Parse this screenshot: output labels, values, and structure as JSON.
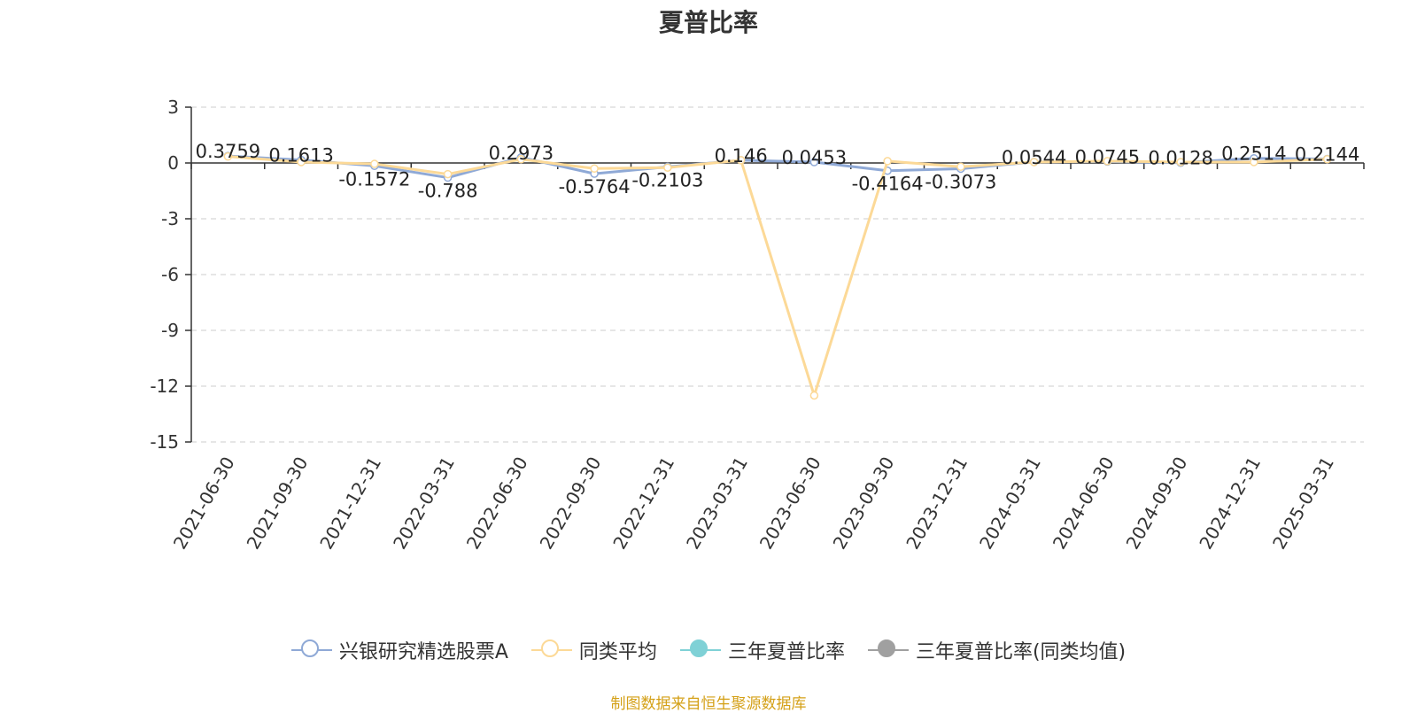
{
  "chart_data": {
    "type": "line",
    "title": "夏普比率",
    "categories": [
      "2021-06-30",
      "2021-09-30",
      "2021-12-31",
      "2022-03-31",
      "2022-06-30",
      "2022-09-30",
      "2022-12-31",
      "2023-03-31",
      "2023-06-30",
      "2023-09-30",
      "2023-12-31",
      "2024-03-31",
      "2024-06-30",
      "2024-09-30",
      "2024-12-31",
      "2025-03-31"
    ],
    "ylim": [
      -15,
      3
    ],
    "yticks": [
      3,
      0,
      -3,
      -6,
      -9,
      -12,
      -15
    ],
    "grid": true,
    "legend_position": "bottom",
    "series": [
      {
        "name": "兴银研究精选股票A",
        "color": "#8fa9d6",
        "hollow": true,
        "values": [
          0.3759,
          0.1613,
          -0.1572,
          -0.788,
          0.2973,
          -0.5764,
          -0.2103,
          0.146,
          0.0453,
          -0.4164,
          -0.3073,
          0.0544,
          0.0745,
          0.0128,
          0.2514,
          0.2144
        ],
        "labels": [
          "0.3759",
          "0.1613",
          "-0.1572",
          "-0.788",
          "0.2973",
          "-0.5764",
          "-0.2103",
          "0.146",
          "0.0453",
          "-0.4164",
          "-0.3073",
          "0.0544",
          "0.0745",
          "0.0128",
          "0.2514",
          "0.2144"
        ]
      },
      {
        "name": "同类平均",
        "color": "#fcd997",
        "hollow": true,
        "values": [
          0.35,
          0.05,
          -0.05,
          -0.6,
          0.2,
          -0.3,
          -0.25,
          0.15,
          -12.5,
          0.1,
          -0.2,
          0.05,
          0.1,
          0.05,
          0.05,
          0.2
        ]
      },
      {
        "name": "三年夏普比率",
        "color": "#7fd1d6",
        "hollow": false,
        "values": [
          null,
          null,
          null,
          null,
          null,
          null,
          null,
          null,
          null,
          null,
          null,
          null,
          null,
          null,
          null,
          null
        ]
      },
      {
        "name": "三年夏普比率(同类均值)",
        "color": "#a0a0a0",
        "hollow": false,
        "values": [
          null,
          null,
          null,
          null,
          null,
          null,
          null,
          null,
          null,
          null,
          null,
          null,
          null,
          null,
          null,
          null
        ]
      }
    ]
  },
  "source_note": "制图数据来自恒生聚源数据库"
}
